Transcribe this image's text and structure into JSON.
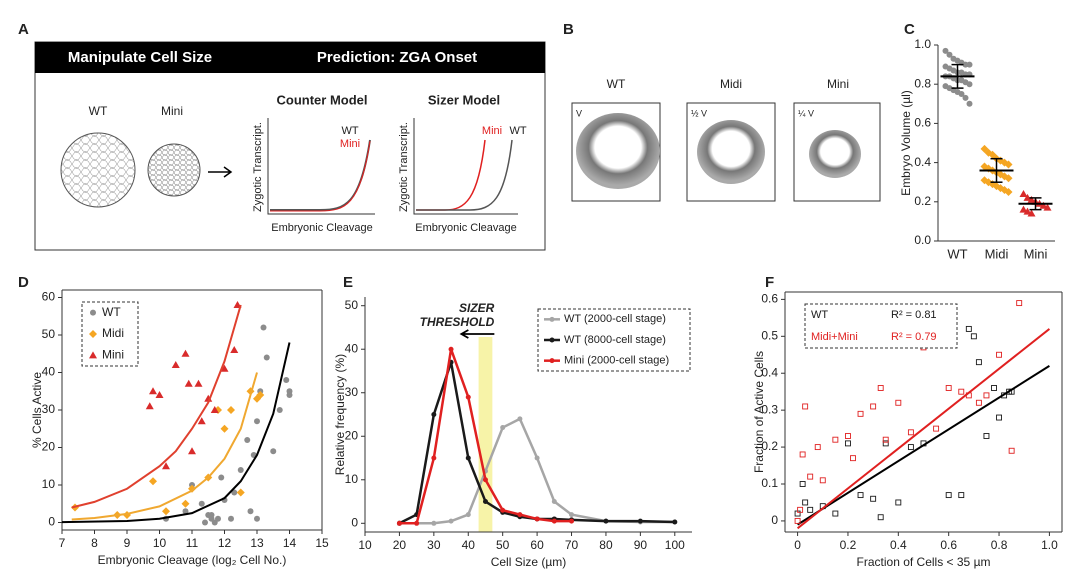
{
  "panel_labels": [
    "A",
    "B",
    "C",
    "D",
    "E",
    "F"
  ],
  "diagram": {
    "header_left": "Manipulate Cell Size",
    "header_right": "Prediction: ZGA Onset",
    "embryo_labels": [
      "WT",
      "Mini"
    ],
    "models": [
      {
        "title": "Counter Model",
        "y_label": "Zygotic Transcript.",
        "x_label": "Embryonic Cleavage",
        "curve_labels": [
          "WT",
          "Mini"
        ]
      },
      {
        "title": "Sizer Model",
        "y_label": "Zygotic Transcript.",
        "x_label": "Embryonic Cleavage",
        "curve_labels": [
          "Mini",
          "WT"
        ]
      }
    ]
  },
  "images": {
    "labels": [
      "WT",
      "Midi",
      "Mini"
    ],
    "volumes": [
      "V",
      "½ V",
      "¼ V"
    ]
  },
  "chart_data": [
    {
      "type": "strip",
      "ylabel": "Embryo Volume (µl)",
      "categories": [
        "WT",
        "Midi",
        "Mini"
      ],
      "ylim": [
        0,
        1.0
      ],
      "yticks": [
        {
          "value": 0,
          "label": "0.0"
        },
        {
          "value": 0.2,
          "label": "0.2"
        },
        {
          "value": 0.4,
          "label": "0.4"
        },
        {
          "value": 0.6,
          "label": "0.6"
        },
        {
          "value": 0.8,
          "label": "0.8"
        },
        {
          "value": 1.0,
          "label": "1.0"
        }
      ],
      "groups": [
        {
          "color": "#8c8c8c",
          "marker": "circle",
          "mean": 0.84,
          "sd": 0.06,
          "values": [
            0.97,
            0.95,
            0.93,
            0.92,
            0.91,
            0.9,
            0.9,
            0.89,
            0.88,
            0.87,
            0.86,
            0.86,
            0.85,
            0.85,
            0.84,
            0.84,
            0.83,
            0.82,
            0.82,
            0.81,
            0.8,
            0.79,
            0.78,
            0.77,
            0.76,
            0.75,
            0.73,
            0.7
          ]
        },
        {
          "color": "#f5a623",
          "marker": "diamond",
          "mean": 0.36,
          "sd": 0.06,
          "values": [
            0.47,
            0.45,
            0.44,
            0.42,
            0.41,
            0.4,
            0.39,
            0.38,
            0.37,
            0.36,
            0.35,
            0.34,
            0.33,
            0.32,
            0.31,
            0.3,
            0.29,
            0.28,
            0.27,
            0.26,
            0.25
          ]
        },
        {
          "color": "#d92b2b",
          "marker": "triangle",
          "mean": 0.19,
          "sd": 0.03,
          "values": [
            0.24,
            0.22,
            0.21,
            0.2,
            0.19,
            0.18,
            0.17,
            0.16,
            0.15,
            0.14
          ]
        }
      ]
    },
    {
      "type": "scatter",
      "xlabel": "Embryonic Cleavage (log₂ Cell No.)",
      "ylabel": "% Cells Active",
      "xlim": [
        7,
        15
      ],
      "ylim": [
        -2,
        62
      ],
      "xticks": [
        7,
        8,
        9,
        10,
        11,
        12,
        13,
        14,
        15
      ],
      "yticks": [
        0,
        10,
        20,
        30,
        40,
        50,
        60
      ],
      "frame": true,
      "legend": "upper left",
      "series": [
        {
          "name": "WT",
          "color": "#8c8c8c",
          "marker": "circle",
          "x": [
            10.2,
            10.8,
            11,
            11.3,
            11.5,
            11.6,
            11.7,
            11.8,
            11.9,
            12,
            12.3,
            12.5,
            12.7,
            12.8,
            12.9,
            13,
            13,
            13.1,
            13.2,
            13.3,
            13.5,
            13.7,
            13.9,
            14,
            14,
            11.6,
            11.4,
            12.2
          ],
          "values": [
            1,
            3,
            10,
            5,
            2,
            1,
            0,
            1,
            12,
            6,
            8,
            14,
            22,
            3,
            18,
            1,
            27,
            35,
            52,
            44,
            19,
            30,
            38,
            35,
            34,
            2,
            0,
            1
          ],
          "fit": {
            "color": "#000000",
            "x": [
              7,
              9,
              10,
              11,
              12,
              12.5,
              13,
              13.5,
              14
            ],
            "values": [
              0.1,
              0.4,
              1,
              2.5,
              6.5,
              11,
              18,
              29,
              48
            ]
          }
        },
        {
          "name": "Midi",
          "color": "#f5a623",
          "marker": "diamond",
          "x": [
            7.4,
            8.7,
            9,
            9.8,
            10.2,
            10.8,
            11,
            11.5,
            11.8,
            12,
            12.2,
            12.5,
            12.8,
            13,
            13.1
          ],
          "values": [
            4,
            2,
            2,
            11,
            3,
            5,
            9,
            12,
            30,
            25,
            30,
            8,
            35,
            33,
            34
          ],
          "fit": {
            "color": "#f0a830",
            "x": [
              7.3,
              8,
              9,
              10,
              11,
              11.5,
              12,
              12.5,
              13
            ],
            "values": [
              0.8,
              1.2,
              2.3,
              4.3,
              8.5,
              12,
              17,
              25,
              40
            ]
          }
        },
        {
          "name": "Mini",
          "color": "#d92b2b",
          "marker": "triangle",
          "x": [
            9.7,
            10,
            10.5,
            10.8,
            11,
            11.2,
            11.5,
            11.7,
            12,
            12.3,
            12.4,
            11.3,
            10.9,
            10.2,
            9.8
          ],
          "values": [
            31,
            34,
            42,
            45,
            19,
            37,
            33,
            30,
            41,
            46,
            58,
            27,
            37,
            15,
            35
          ],
          "fit": {
            "color": "#e0402e",
            "x": [
              7.3,
              8,
              9,
              10,
              10.5,
              11,
              11.5,
              12,
              12.5
            ],
            "values": [
              4,
              5.5,
              9,
              15,
              19,
              25,
              32,
              43,
              58
            ]
          }
        }
      ]
    },
    {
      "type": "line",
      "xlabel": "Cell Size (µm)",
      "ylabel": "Relative frequency (%)",
      "xlim": [
        10,
        105
      ],
      "ylim": [
        -2,
        52
      ],
      "xticks": [
        10,
        20,
        30,
        40,
        50,
        60,
        70,
        80,
        90,
        100
      ],
      "yticks": [
        0,
        10,
        20,
        30,
        40,
        50
      ],
      "legend": "upper right",
      "threshold": {
        "range": [
          43,
          47
        ],
        "color": "#f7f3a8"
      },
      "annotation": [
        "SIZER",
        "THRESHOLD"
      ],
      "series": [
        {
          "name": "WT (2000-cell stage)",
          "color": "#a6a6a6",
          "x": [
            20,
            30,
            35,
            40,
            45,
            50,
            55,
            60,
            65,
            70,
            80,
            90,
            100
          ],
          "values": [
            0,
            0,
            0.5,
            2,
            12,
            22,
            24,
            15,
            5,
            2,
            0.5,
            0.3,
            0.3
          ]
        },
        {
          "name": "WT (8000-cell stage)",
          "color": "#1a1a1a",
          "x": [
            20,
            25,
            30,
            35,
            40,
            45,
            50,
            55,
            60,
            65,
            70,
            80,
            90,
            100
          ],
          "values": [
            0,
            2,
            25,
            37,
            15,
            5,
            2.5,
            1.5,
            1,
            1,
            0.8,
            0.5,
            0.5,
            0.3
          ]
        },
        {
          "name": "Mini (2000-cell stage)",
          "color": "#e02020",
          "x": [
            20,
            25,
            30,
            35,
            40,
            45,
            50,
            55,
            60,
            65,
            70
          ],
          "values": [
            0,
            0,
            15,
            40,
            29,
            10,
            3,
            2,
            1,
            0.5,
            0.5
          ]
        }
      ]
    },
    {
      "type": "scatter",
      "xlabel": "Fraction of Cells < 35 µm",
      "ylabel": "Fraction of Active Cells",
      "xlim": [
        -0.05,
        1.05
      ],
      "ylim": [
        -0.03,
        0.62
      ],
      "xticks": [
        0,
        0.2,
        0.4,
        0.6,
        0.8,
        {
          "value": 1.0,
          "label": "1.0"
        }
      ],
      "yticks": [
        0,
        0.1,
        0.2,
        0.3,
        0.4,
        0.5,
        0.6
      ],
      "frame": true,
      "legend": "upper left",
      "series": [
        {
          "name": "WT",
          "r2_label": "R² = 0.81",
          "color": "#1a1a1a",
          "marker": "square",
          "x": [
            0,
            0.02,
            0.03,
            0.05,
            0.1,
            0.15,
            0.2,
            0.25,
            0.3,
            0.33,
            0.35,
            0.4,
            0.45,
            0.5,
            0.6,
            0.65,
            0.68,
            0.7,
            0.72,
            0.75,
            0.78,
            0.8,
            0.82,
            0.84,
            0.85
          ],
          "values": [
            0.02,
            0.1,
            0.05,
            0.03,
            0.04,
            0.02,
            0.21,
            0.07,
            0.06,
            0.01,
            0.21,
            0.05,
            0.2,
            0.21,
            0.07,
            0.07,
            0.52,
            0.5,
            0.43,
            0.23,
            0.36,
            0.28,
            0.34,
            0.35,
            0.35
          ],
          "fit": {
            "color": "#000000",
            "x": [
              0,
              1.0
            ],
            "values": [
              -0.01,
              0.42
            ]
          }
        },
        {
          "name": "Midi+Mini",
          "r2_label": "R² = 0.79",
          "color": "#e02020",
          "marker": "square",
          "x": [
            0,
            0.01,
            0.02,
            0.03,
            0.05,
            0.08,
            0.1,
            0.15,
            0.2,
            0.22,
            0.25,
            0.3,
            0.33,
            0.35,
            0.4,
            0.45,
            0.5,
            0.55,
            0.6,
            0.65,
            0.68,
            0.72,
            0.75,
            0.8,
            0.85,
            0.88
          ],
          "values": [
            0,
            0.03,
            0.18,
            0.31,
            0.12,
            0.2,
            0.11,
            0.22,
            0.23,
            0.17,
            0.29,
            0.31,
            0.36,
            0.22,
            0.32,
            0.24,
            0.47,
            0.25,
            0.36,
            0.35,
            0.34,
            0.32,
            0.34,
            0.45,
            0.19,
            0.59
          ],
          "fit": {
            "color": "#e02020",
            "x": [
              0,
              1.0
            ],
            "values": [
              -0.02,
              0.52
            ]
          }
        }
      ]
    }
  ]
}
